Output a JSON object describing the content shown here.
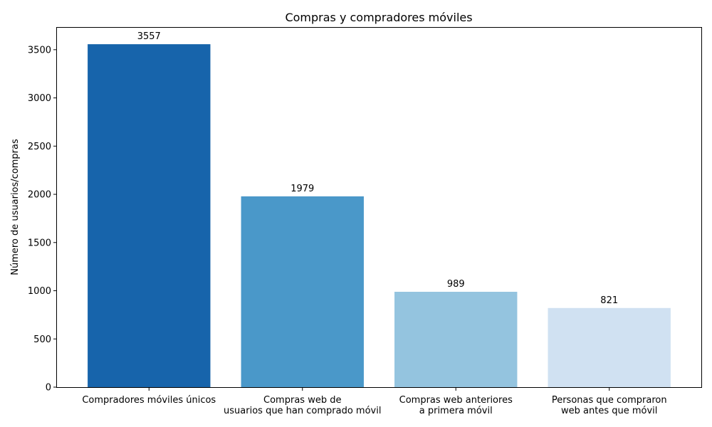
{
  "chart_data": {
    "type": "bar",
    "title": "Compras y compradores móviles",
    "xlabel": "",
    "ylabel": "Número de usuarios/compras",
    "categories": [
      [
        "Compradores móviles únicos"
      ],
      [
        "Compras web de",
        "usuarios que han comprado móvil"
      ],
      [
        "Compras web anteriores",
        "a primera móvil"
      ],
      [
        "Personas que compraron",
        "web antes que móvil"
      ]
    ],
    "values": [
      3557,
      1979,
      989,
      821
    ],
    "value_labels": [
      "3557",
      "1979",
      "989",
      "821"
    ],
    "colors": [
      "#1764ab",
      "#4a98c9",
      "#94c4df",
      "#d0e1f2"
    ],
    "ylim": [
      0,
      3735
    ],
    "yticks": [
      0,
      500,
      1000,
      1500,
      2000,
      2500,
      3000,
      3500
    ],
    "grid": false,
    "legend": "none"
  }
}
